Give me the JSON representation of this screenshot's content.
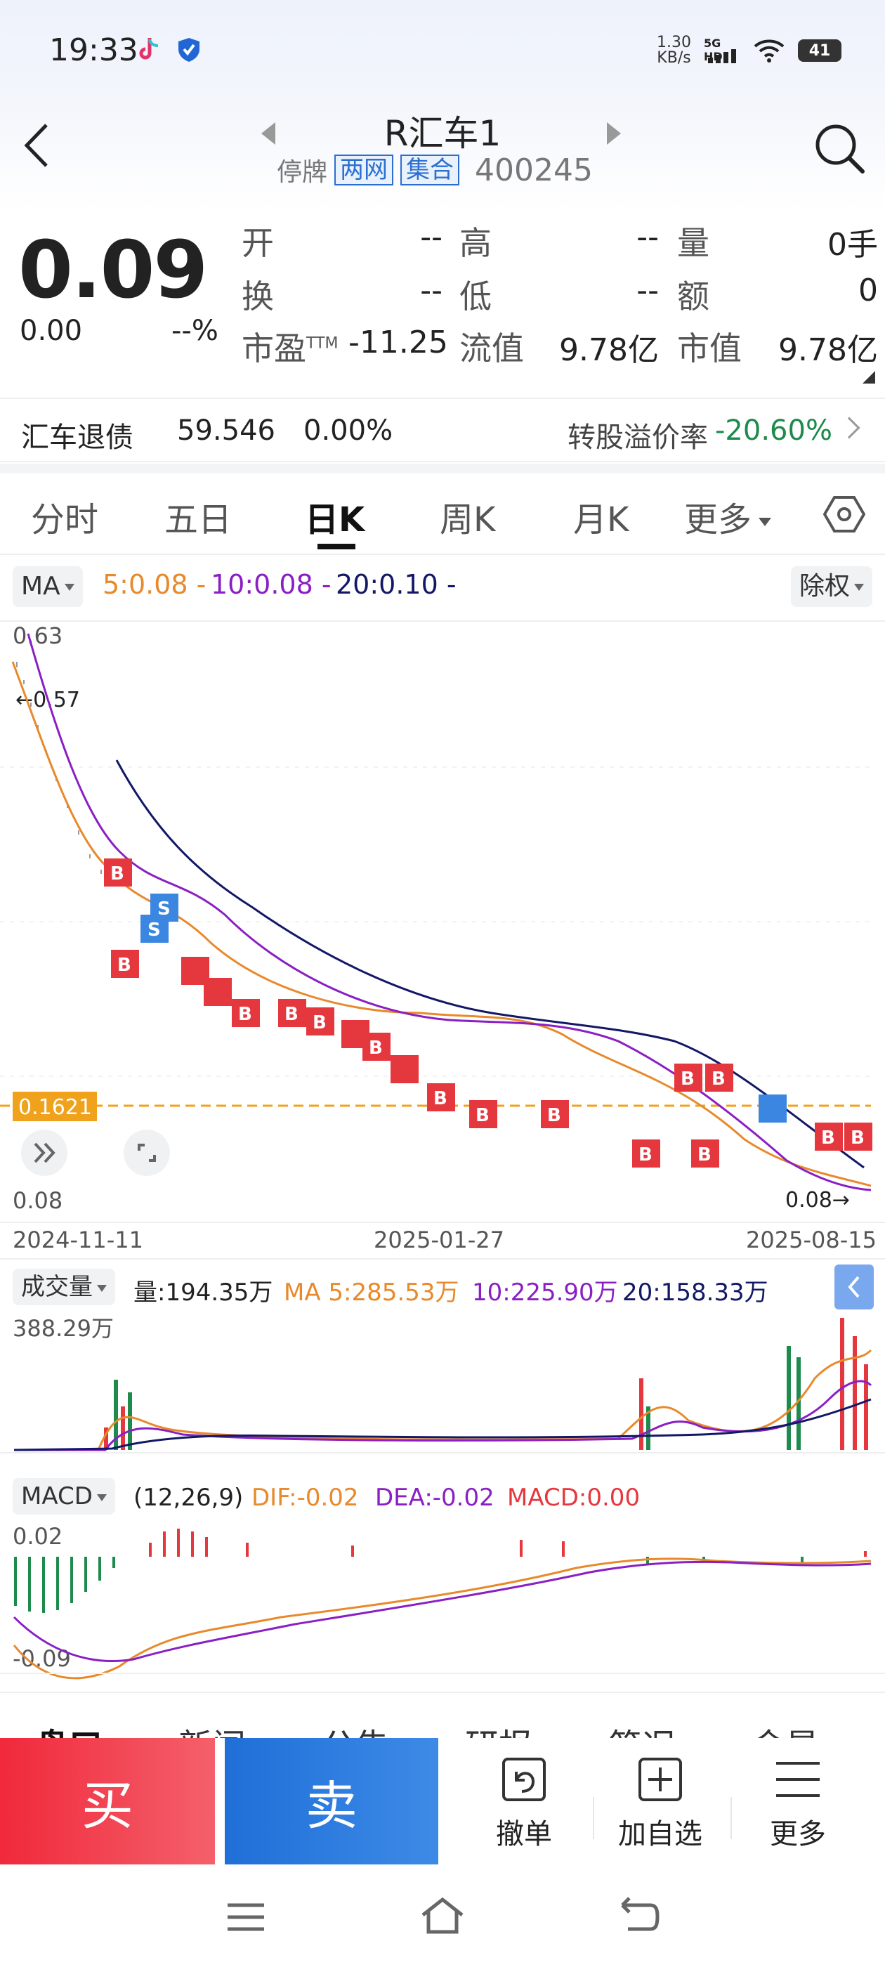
{
  "status_bar": {
    "time": "19:33",
    "net_speed_value": "1.30",
    "net_speed_unit": "KB/s",
    "signal": "5G HD",
    "battery": "41",
    "icons": [
      "tiktok-icon",
      "shield-icon",
      "wifi-icon",
      "signal-icon"
    ]
  },
  "header": {
    "name": "R汇车1",
    "status": "停牌",
    "tag1": "两网",
    "tag2": "集合",
    "code": "400245"
  },
  "quote": {
    "price": "0.09",
    "change": "0.00",
    "change_pct": "--%",
    "open_label": "开",
    "open": "--",
    "high_label": "高",
    "high": "--",
    "volume_label": "量",
    "volume": "0手",
    "turnover_label": "换",
    "turnover": "--",
    "low_label": "低",
    "low": "--",
    "amount_label": "额",
    "amount": "0",
    "pe_label": "市盈",
    "pe_sup": "TTM",
    "pe": "-11.25",
    "float_cap_label": "流值",
    "float_cap": "9.78亿",
    "market_cap_label": "市值",
    "market_cap": "9.78亿"
  },
  "bond": {
    "name": "汇车退债",
    "price": "59.546",
    "change": "0.00%",
    "premium_label": "转股溢价率",
    "premium": "-20.60%"
  },
  "tabs": [
    "分时",
    "五日",
    "日K",
    "周K",
    "月K",
    "更多"
  ],
  "ma_bar": {
    "selector": "MA",
    "ma5": "5:0.08 -",
    "ma10": "10:0.08 -",
    "ma20": "20:0.10 -",
    "adjust": "除权"
  },
  "kline": {
    "y_max_label": "0.63",
    "y_min_label": "0.08",
    "high_marker": "←0.57",
    "low_marker": "0.08→",
    "ref_line_label": "0.1621",
    "x_labels": [
      "2024-11-11",
      "2025-01-27",
      "2025-08-15"
    ],
    "trade_buy": "B",
    "trade_sell": "S"
  },
  "volume_bar": {
    "selector": "成交量",
    "vol": "量:194.35万",
    "ma5": "MA 5:285.53万",
    "ma10": "10:225.90万",
    "ma20": "20:158.33万",
    "y_max_label": "388.29万"
  },
  "macd_bar": {
    "selector": "MACD",
    "params": "(12,26,9)",
    "dif": "DIF:-0.02",
    "dea": "DEA:-0.02",
    "macd": "MACD:0.00",
    "y_max_label": "0.02",
    "y_min_label": "-0.09"
  },
  "news_tabs": [
    "盘口",
    "新闻",
    "公告",
    "研报",
    "简况",
    "金星"
  ],
  "actions": {
    "buy": "买",
    "sell": "卖",
    "cancel": "撤单",
    "watchlist": "加自选",
    "more": "更多"
  },
  "colors": {
    "up_red": "#e5373e",
    "down_green": "#1e8a4c",
    "ma5_orange": "#e8892b",
    "ma10_purple": "#8a1fc4",
    "ma20_navy": "#131866",
    "ref_line": "#f0a21c",
    "buy_btn": "#f0293b",
    "sell_btn": "#1f6fd8"
  }
}
